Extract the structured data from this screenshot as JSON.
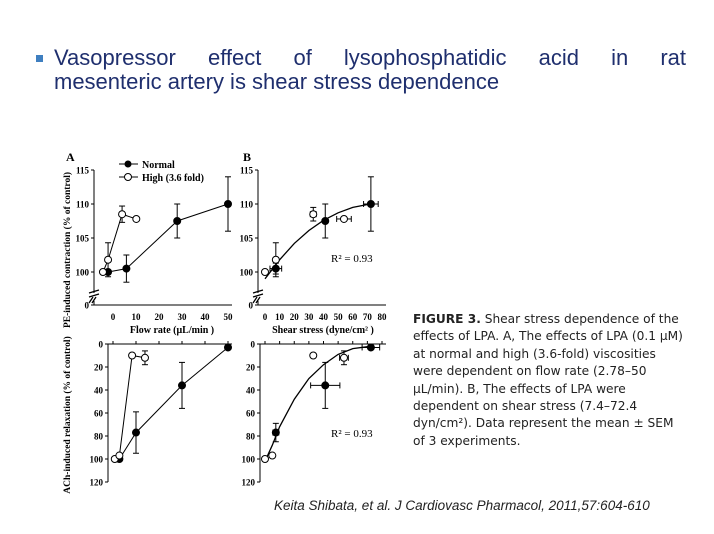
{
  "slide": {
    "title_line1": "Vasopressor effect of lysophosphatidic acid in rat",
    "title_line2": "mesenteric artery is shear stress dependence"
  },
  "figure": {
    "caption_figno": "FIGURE 3.",
    "caption_text": "Shear stress dependence of the effects of LPA. A, The effects of LPA (0.1 μM) at normal and high (3.6-fold) viscosities were dependent on flow rate (2.78–50 μL/min). B, The effects of LPA were dependent on shear stress (7.4–72.4 dyn/cm²). Data represent the mean ± SEM of 3 experiments.",
    "citation": "Keita Shibata, et al. J Cardiovasc Pharmacol, 2011,57:604-610"
  },
  "chart_data": [
    {
      "id": "A-top",
      "panel_label": "A",
      "type": "line",
      "xlabel": "",
      "ylabel": "PE-induced contraction (% of control)",
      "xlim": [
        0,
        50
      ],
      "ylim": [
        100,
        115
      ],
      "axis_break": true,
      "yticks": [
        0,
        100,
        105,
        110,
        115
      ],
      "xticks": [],
      "legend": {
        "placement": "top-left",
        "entries": [
          "Normal",
          "High (3.6 fold)"
        ]
      },
      "series": [
        {
          "name": "Normal",
          "marker": "filled",
          "points": [
            {
              "x": 2.78,
              "y": 100,
              "err": 0
            },
            {
              "x": 10,
              "y": 100.5,
              "err": 2
            },
            {
              "x": 30,
              "y": 107.5,
              "err": 2.5
            },
            {
              "x": 50,
              "y": 110,
              "err": 4
            }
          ]
        },
        {
          "name": "High (3.6 fold)",
          "marker": "open",
          "points": [
            {
              "x": 0.77,
              "y": 100,
              "err": 0
            },
            {
              "x": 2.78,
              "y": 101.8,
              "err": 2.5
            },
            {
              "x": 8.3,
              "y": 108.5,
              "err": 1.2
            },
            {
              "x": 13.9,
              "y": 107.8,
              "err": 0
            }
          ]
        }
      ]
    },
    {
      "id": "A-bottom",
      "type": "line",
      "xlabel": "Flow rate (μL/min )",
      "ylabel": "ACh-induced relaxation (% of control)",
      "xlim": [
        0,
        50
      ],
      "ylim": [
        0,
        120
      ],
      "y_inverted": true,
      "yticks": [
        0,
        20,
        40,
        60,
        80,
        100,
        120
      ],
      "xticks": [
        0,
        10,
        20,
        30,
        40,
        50
      ],
      "series": [
        {
          "name": "Normal",
          "marker": "filled",
          "points": [
            {
              "x": 2.78,
              "y": 100,
              "err": 0
            },
            {
              "x": 10,
              "y": 77,
              "err": 18
            },
            {
              "x": 30,
              "y": 36,
              "err": 20
            },
            {
              "x": 50,
              "y": 3,
              "err": 0
            }
          ]
        },
        {
          "name": "High (3.6 fold)",
          "marker": "open",
          "points": [
            {
              "x": 0.77,
              "y": 100,
              "err": 0
            },
            {
              "x": 2.78,
              "y": 97,
              "err": 0
            },
            {
              "x": 8.3,
              "y": 10,
              "err": 0
            },
            {
              "x": 13.9,
              "y": 12,
              "err": 6
            }
          ]
        }
      ]
    },
    {
      "id": "B-top",
      "panel_label": "B",
      "type": "scatter",
      "xlabel": "",
      "ylabel": "",
      "xlim": [
        0,
        80
      ],
      "ylim": [
        100,
        115
      ],
      "axis_break": true,
      "yticks": [
        0,
        100,
        105,
        110,
        115
      ],
      "xticks": [],
      "annotation": "R² = 0.93",
      "series": [
        {
          "name": "Normal",
          "marker": "filled",
          "points": [
            {
              "x": 7.4,
              "y": 100.5,
              "err": 0.8,
              "xerr": 4
            },
            {
              "x": 41.2,
              "y": 107.5,
              "err": 2.5,
              "xerr": 0
            },
            {
              "x": 72.4,
              "y": 110,
              "err": 4,
              "xerr": 5
            }
          ]
        },
        {
          "name": "High (3.6 fold)",
          "marker": "open",
          "points": [
            {
              "x": 0,
              "y": 100,
              "err": 0,
              "xerr": 0
            },
            {
              "x": 7.4,
              "y": 101.8,
              "err": 2.5,
              "xerr": 0
            },
            {
              "x": 33,
              "y": 108.5,
              "err": 1,
              "xerr": 2
            },
            {
              "x": 54,
              "y": 107.8,
              "err": 0,
              "xerr": 5
            }
          ]
        }
      ],
      "fit": [
        {
          "x": 0,
          "y": 99
        },
        {
          "x": 10,
          "y": 101.8
        },
        {
          "x": 20,
          "y": 104.2
        },
        {
          "x": 30,
          "y": 106.1
        },
        {
          "x": 40,
          "y": 107.6
        },
        {
          "x": 50,
          "y": 108.7
        },
        {
          "x": 60,
          "y": 109.5
        },
        {
          "x": 72,
          "y": 110
        }
      ]
    },
    {
      "id": "B-bottom",
      "type": "scatter",
      "xlabel": "Shear stress (dyne/cm² )",
      "ylabel": "",
      "xlim": [
        0,
        80
      ],
      "ylim": [
        0,
        120
      ],
      "y_inverted": true,
      "yticks": [
        0,
        20,
        40,
        60,
        80,
        100,
        120
      ],
      "xticks": [
        0,
        10,
        20,
        30,
        40,
        50,
        60,
        70,
        80
      ],
      "annotation": "R² = 0.93",
      "series": [
        {
          "name": "Normal",
          "marker": "filled",
          "points": [
            {
              "x": 7.4,
              "y": 77,
              "err": 8,
              "xerr": 2
            },
            {
              "x": 41.2,
              "y": 36,
              "err": 20,
              "xerr": 10
            },
            {
              "x": 72.4,
              "y": 3,
              "err": 0,
              "xerr": 6
            }
          ]
        },
        {
          "name": "High (3.6 fold)",
          "marker": "open",
          "points": [
            {
              "x": 0,
              "y": 100,
              "err": 0,
              "xerr": 0
            },
            {
              "x": 5,
              "y": 97,
              "err": 0,
              "xerr": 0
            },
            {
              "x": 33,
              "y": 10,
              "err": 0,
              "xerr": 0
            },
            {
              "x": 54,
              "y": 12,
              "err": 6,
              "xerr": 3
            }
          ]
        }
      ],
      "fit": [
        {
          "x": 0,
          "y": 102
        },
        {
          "x": 5,
          "y": 88
        },
        {
          "x": 10,
          "y": 72
        },
        {
          "x": 20,
          "y": 48
        },
        {
          "x": 30,
          "y": 30
        },
        {
          "x": 40,
          "y": 18
        },
        {
          "x": 50,
          "y": 9
        },
        {
          "x": 60,
          "y": 4
        },
        {
          "x": 72,
          "y": 2
        }
      ]
    }
  ]
}
